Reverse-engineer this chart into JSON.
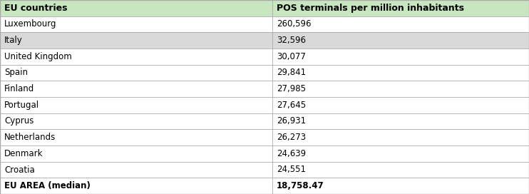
{
  "col1_header": "EU countries",
  "col2_header": "POS terminals per million inhabitants",
  "rows": [
    {
      "country": "Luxembourg",
      "value": "260,596",
      "highlight": false,
      "bold": false
    },
    {
      "country": "Italy",
      "value": "32,596",
      "highlight": true,
      "bold": false
    },
    {
      "country": "United Kingdom",
      "value": "30,077",
      "highlight": false,
      "bold": false
    },
    {
      "country": "Spain",
      "value": "29,841",
      "highlight": false,
      "bold": false
    },
    {
      "country": "Finland",
      "value": "27,985",
      "highlight": false,
      "bold": false
    },
    {
      "country": "Portugal",
      "value": "27,645",
      "highlight": false,
      "bold": false
    },
    {
      "country": "Cyprus",
      "value": "26,931",
      "highlight": false,
      "bold": false
    },
    {
      "country": "Netherlands",
      "value": "26,273",
      "highlight": false,
      "bold": false
    },
    {
      "country": "Denmark",
      "value": "24,639",
      "highlight": false,
      "bold": false
    },
    {
      "country": "Croatia",
      "value": "24,551",
      "highlight": false,
      "bold": false
    },
    {
      "country": "EU AREA (median)",
      "value": "18,758.47",
      "highlight": false,
      "bold": true
    }
  ],
  "header_bg": "#c8e6c0",
  "highlight_bg": "#d9d9d9",
  "white_bg": "#ffffff",
  "border_color": "#aaaaaa",
  "header_text_color": "#000000",
  "body_text_color": "#000000",
  "col_split": 0.515,
  "font_size": 8.5,
  "header_font_size": 9.0
}
